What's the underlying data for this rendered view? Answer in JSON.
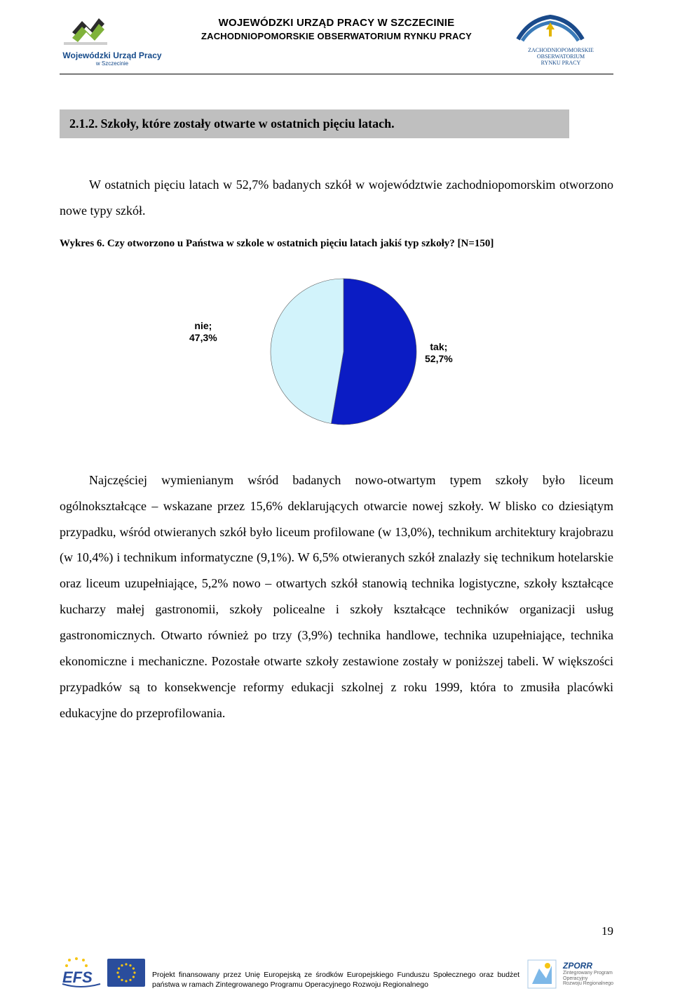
{
  "header": {
    "line1": "WOJEWÓDZKI URZĄD PRACY W SZCZECINIE",
    "line2": "ZACHODNIOPOMORSKIE OBSERWATORIUM RYNKU PRACY",
    "logo_left_text_main": "Wojewódzki Urząd Pracy",
    "logo_left_text_sub": "w Szczecinie",
    "logo_right_line1": "ZACHODNIOPOMORSKIE",
    "logo_right_line2": "OBSERWATORIUM",
    "logo_right_line3": "RYNKU PRACY"
  },
  "section": {
    "number": "2.1.2.",
    "title": "Szkoły, które zostały otwarte w ostatnich pięciu latach."
  },
  "intro": {
    "text": "W ostatnich pięciu latach w 52,7% badanych szkół w województwie zachodniopomorskim otworzono nowe typy szkół."
  },
  "chart_caption": "Wykres 6. Czy otworzono u Państwa w szkole w ostatnich pięciu latach jakiś typ szkoły? [N=150]",
  "chart": {
    "type": "pie",
    "slices": [
      {
        "label_line1": "tak;",
        "label_line2": "52,7%",
        "value": 52.7,
        "color": "#0b1cc4"
      },
      {
        "label_line1": "nie;",
        "label_line2": "47,3%",
        "value": 47.3,
        "color": "#d2f3fb"
      }
    ],
    "outline_color": "#5a5a5a",
    "background_color": "#ffffff",
    "radius": 104,
    "label_fontsize": 14,
    "label_fontfamily": "Arial",
    "label_fontweight": "bold"
  },
  "body_para": "Najczęściej wymienianym wśród badanych nowo-otwartym typem szkoły było liceum ogólnokształcące – wskazane przez 15,6% deklarujących otwarcie nowej szkoły. W blisko co dziesiątym przypadku, wśród otwieranych szkół było liceum profilowane (w  13,0%), technikum architektury krajobrazu (w 10,4%) i technikum informatyczne (9,1%). W 6,5% otwieranych szkół znalazły się technikum hotelarskie oraz liceum uzupełniające, 5,2% nowo – otwartych szkół stanowią technika logistyczne, szkoły kształcące kucharzy małej gastronomii, szkoły policealne i szkoły kształcące techników organizacji usług gastronomicznych. Otwarto również po trzy (3,9%) technika handlowe, technika uzupełniające, technika ekonomiczne i mechaniczne. Pozostałe otwarte szkoły zestawione zostały w poniższej tabeli. W większości przypadków są to konsekwencje reformy edukacji szkolnej z roku 1999, która to zmusiła placówki edukacyjne do przeprofilowania.",
  "footer": {
    "text": "Projekt finansowany przez Unię Europejską ze środków Europejskiego Funduszu Społecznego oraz budżet państwa w ramach  Zintegrowanego Programu  Operacyjnego Rozwoju  Regionalnego",
    "zporr_title": "ZPORR",
    "zporr_sub1": "Zintegrowany Program",
    "zporr_sub2": "Operacyjny",
    "zporr_sub3": "Rozwoju Regionalnego"
  },
  "page_number": "19",
  "colors": {
    "heading_bg": "#bfbfbf",
    "text": "#000000",
    "header_blue": "#154a8a",
    "efs_blue": "#2a4d9c",
    "efs_yellow": "#f6c514"
  }
}
